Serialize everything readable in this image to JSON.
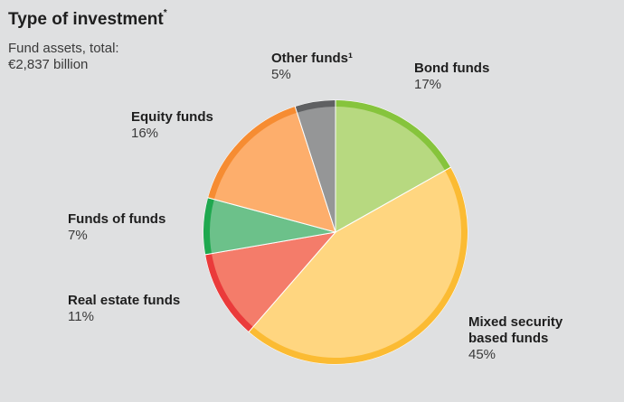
{
  "header": {
    "title": "Type of investment",
    "title_mark": "*",
    "subtitle_line1": "Fund assets, total:",
    "subtitle_line2": "€2,837 billion"
  },
  "chart_data": {
    "type": "pie",
    "title": "Type of investment",
    "total": "€2,837 billion",
    "slices": [
      {
        "label": "Bond funds",
        "value": 17,
        "value_label": "17%",
        "fill": "#b7d980",
        "edge": "#86c43c"
      },
      {
        "label": "Mixed security based funds",
        "value": 45,
        "value_label": "45%",
        "fill": "#ffd680",
        "edge": "#fbbb33"
      },
      {
        "label": "Real estate funds",
        "value": 11,
        "value_label": "11%",
        "fill": "#f47c6a",
        "edge": "#ea3b3b"
      },
      {
        "label": "Funds of funds",
        "value": 7,
        "value_label": "7%",
        "fill": "#6cc18a",
        "edge": "#1fa84f"
      },
      {
        "label": "Equity funds",
        "value": 16,
        "value_label": "16%",
        "fill": "#fdae6c",
        "edge": "#f68c32"
      },
      {
        "label": "Other funds¹",
        "value": 5,
        "value_label": "5%",
        "fill": "#959697",
        "edge": "#5f6062"
      }
    ]
  }
}
